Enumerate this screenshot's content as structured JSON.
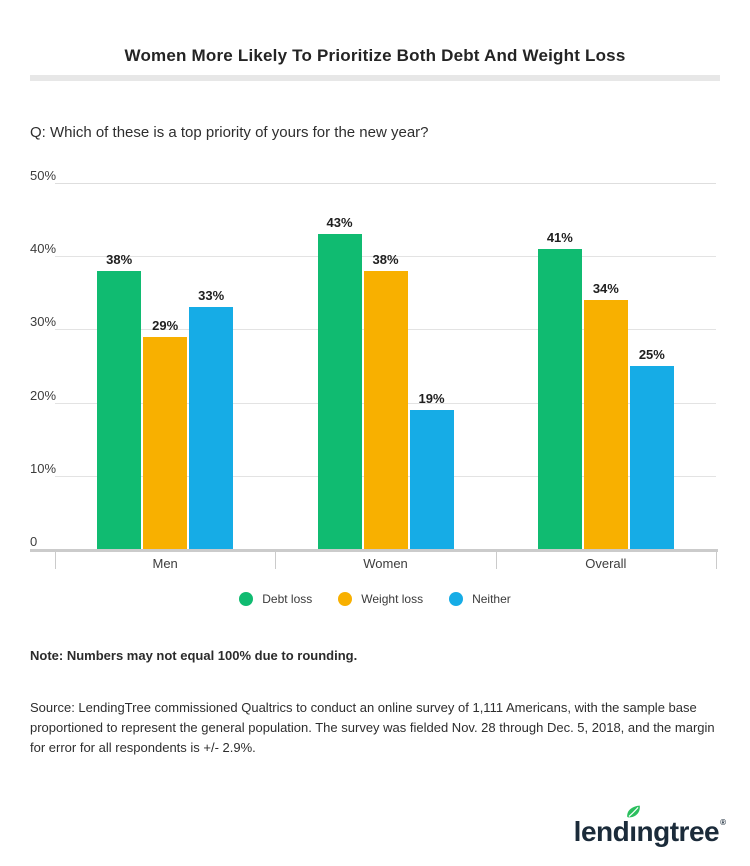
{
  "header": {
    "title": "Women More Likely To Prioritize Both Debt And Weight Loss"
  },
  "question": "Q: Which of these is a top priority of yours for the new year?",
  "chart_data": {
    "type": "bar",
    "title": "Women More Likely To Prioritize Both Debt And Weight Loss",
    "categories": [
      "Men",
      "Women",
      "Overall"
    ],
    "series": [
      {
        "name": "Debt loss",
        "color": "#10bb71",
        "values": [
          38,
          43,
          41
        ]
      },
      {
        "name": "Weight loss",
        "color": "#f8b000",
        "values": [
          29,
          38,
          34
        ]
      },
      {
        "name": "Neither",
        "color": "#16ace6",
        "values": [
          33,
          19,
          25
        ]
      }
    ],
    "value_suffix": "%",
    "xlabel": "",
    "ylabel": "",
    "ylim": [
      0,
      50
    ],
    "yticks": [
      {
        "value": 0,
        "label": "0"
      },
      {
        "value": 10,
        "label": "10%"
      },
      {
        "value": 20,
        "label": "20%"
      },
      {
        "value": 30,
        "label": "30%"
      },
      {
        "value": 40,
        "label": "40%"
      },
      {
        "value": 50,
        "label": "50%"
      }
    ],
    "grid": true,
    "legend_position": "bottom"
  },
  "note": "Note: Numbers may not equal 100% due to rounding.",
  "source": "Source: LendingTree commissioned Qualtrics to conduct an online survey of 1,111 Americans, with the sample base proportioned to represent the general population. The survey was fielded Nov. 28 through Dec. 5, 2018, and the margin for error for all respondents is +/- 2.9%.",
  "logo": {
    "name": "lendingtree",
    "part_before_i": "lend",
    "dotless_i": "ı",
    "part_after_i": "ngtree",
    "registered": "®",
    "navy_color": "#1b2b3a",
    "leaf_color": "#2bbf5e"
  }
}
